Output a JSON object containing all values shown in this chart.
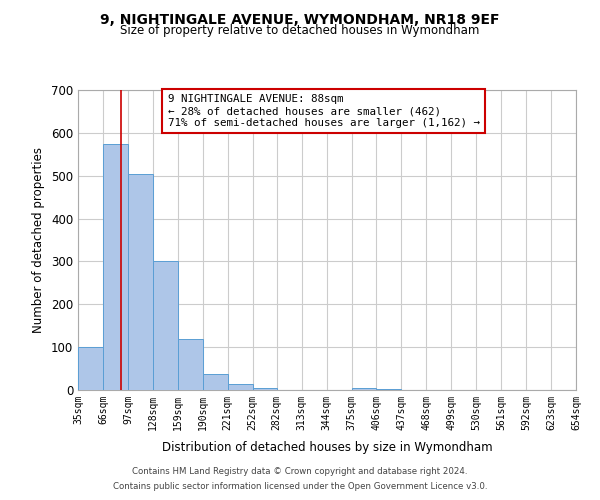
{
  "title": "9, NIGHTINGALE AVENUE, WYMONDHAM, NR18 9EF",
  "subtitle": "Size of property relative to detached houses in Wymondham",
  "xlabel": "Distribution of detached houses by size in Wymondham",
  "ylabel": "Number of detached properties",
  "footnote1": "Contains HM Land Registry data © Crown copyright and database right 2024.",
  "footnote2": "Contains public sector information licensed under the Open Government Licence v3.0.",
  "bin_edges": [
    35,
    66,
    97,
    128,
    159,
    190,
    221,
    252,
    282,
    313,
    344,
    375,
    406,
    437,
    468,
    499,
    530,
    561,
    592,
    623,
    654
  ],
  "bar_heights": [
    100,
    575,
    505,
    300,
    120,
    37,
    14,
    5,
    0,
    0,
    0,
    5,
    2,
    0,
    0,
    0,
    0,
    0,
    0,
    0
  ],
  "bar_color": "#aec6e8",
  "bar_edge_color": "#5a9ed4",
  "ylim": [
    0,
    700
  ],
  "yticks": [
    0,
    100,
    200,
    300,
    400,
    500,
    600,
    700
  ],
  "property_size": 88,
  "property_line_color": "#cc0000",
  "annotation_title": "9 NIGHTINGALE AVENUE: 88sqm",
  "annotation_line1": "← 28% of detached houses are smaller (462)",
  "annotation_line2": "71% of semi-detached houses are larger (1,162) →",
  "annotation_box_color": "#ffffff",
  "annotation_box_edge": "#cc0000",
  "grid_color": "#cccccc",
  "background_color": "#ffffff",
  "tick_labels": [
    "35sqm",
    "66sqm",
    "97sqm",
    "128sqm",
    "159sqm",
    "190sqm",
    "221sqm",
    "252sqm",
    "282sqm",
    "313sqm",
    "344sqm",
    "375sqm",
    "406sqm",
    "437sqm",
    "468sqm",
    "499sqm",
    "530sqm",
    "561sqm",
    "592sqm",
    "623sqm",
    "654sqm"
  ]
}
